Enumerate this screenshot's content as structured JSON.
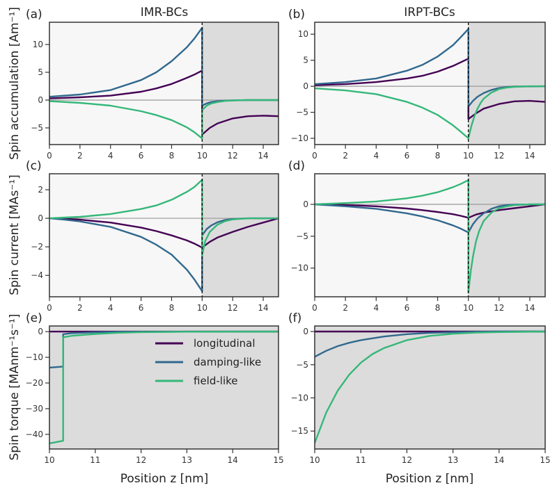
{
  "chart_data": {
    "type": "line",
    "layout": "3x2 grid",
    "columns": [
      "IMR-BCs",
      "IRPT-BCs"
    ],
    "row_ylabels": [
      "Spin accumulation [Am⁻¹]",
      "Spin current [MAs⁻¹]",
      "Spin torque [MAnm⁻¹s⁻¹]"
    ],
    "xlabel": "Position z [nm]",
    "interface_z": 10,
    "colors": {
      "longitudinal": "#440154",
      "damping-like": "#31688e",
      "field-like": "#35b779",
      "nm_region_bg": "#f7f7f7",
      "fm_region_bg": "#dcdcdc",
      "zero_line": "#999999",
      "frame": "#333333"
    },
    "legend": {
      "placement": "upper-right of panel (e)",
      "entries": [
        "longitudinal",
        "damping-like",
        "field-like"
      ]
    },
    "panels": [
      {
        "id": "a",
        "label": "(a)",
        "title": "IMR-BCs",
        "xlim": [
          0,
          15
        ],
        "ylim": [
          -8,
          14
        ],
        "xticks": [
          0,
          2,
          4,
          6,
          8,
          10,
          12,
          14
        ],
        "yticks": [
          -5,
          0,
          5,
          10
        ],
        "ytick_labels": [
          "−5",
          "0",
          "5",
          "10"
        ],
        "shade_from": 10,
        "interface_line": true,
        "series": [
          {
            "name": "longitudinal",
            "x": [
              0,
              2,
              4,
              6,
              7,
              8,
              9,
              9.5,
              10,
              10,
              10.5,
              11,
              12,
              13,
              14,
              15
            ],
            "y": [
              0.3,
              0.5,
              0.8,
              1.5,
              2.1,
              2.9,
              4.0,
              4.6,
              5.3,
              -6.2,
              -5.0,
              -4.2,
              -3.3,
              -2.9,
              -2.8,
              -2.9
            ]
          },
          {
            "name": "damping-like",
            "x": [
              0,
              2,
              4,
              6,
              7,
              8,
              9,
              9.5,
              10,
              10,
              10.3,
              10.6,
              11,
              11.5,
              12,
              13,
              15
            ],
            "y": [
              0.6,
              1.0,
              1.8,
              3.6,
              5.0,
              7.0,
              9.5,
              11.1,
              13.0,
              -1.0,
              -0.6,
              -0.35,
              -0.2,
              -0.1,
              -0.05,
              0,
              0
            ]
          },
          {
            "name": "field-like",
            "x": [
              0,
              2,
              4,
              6,
              7,
              8,
              9,
              9.5,
              10,
              10,
              10.3,
              10.6,
              11,
              11.5,
              12,
              13,
              15
            ],
            "y": [
              -0.2,
              -0.5,
              -1.0,
              -2.0,
              -2.7,
              -3.6,
              -4.9,
              -5.8,
              -6.9,
              -1.8,
              -1.0,
              -0.6,
              -0.35,
              -0.15,
              -0.08,
              0,
              0
            ]
          }
        ]
      },
      {
        "id": "b",
        "label": "(b)",
        "title": "IRPT-BCs",
        "xlim": [
          0,
          15
        ],
        "ylim": [
          -11.2,
          12.3
        ],
        "xticks": [
          0,
          2,
          4,
          6,
          8,
          10,
          12,
          14
        ],
        "yticks": [
          -10,
          -5,
          0,
          5,
          10
        ],
        "ytick_labels": [
          "−10",
          "−5",
          "0",
          "5",
          "10"
        ],
        "shade_from": 10,
        "interface_line": true,
        "series": [
          {
            "name": "longitudinal",
            "x": [
              0,
              2,
              4,
              6,
              7,
              8,
              9,
              9.5,
              10,
              10,
              10.5,
              11,
              12,
              13,
              14,
              15
            ],
            "y": [
              0.2,
              0.4,
              0.8,
              1.5,
              2.0,
              2.8,
              3.9,
              4.6,
              5.3,
              -6.3,
              -5.2,
              -4.3,
              -3.4,
              -2.9,
              -2.8,
              -3.0
            ]
          },
          {
            "name": "damping-like",
            "x": [
              0,
              2,
              4,
              6,
              7,
              8,
              9,
              9.5,
              10,
              10,
              10.3,
              10.6,
              11,
              11.5,
              12,
              12.5,
              13,
              15
            ],
            "y": [
              0.4,
              0.8,
              1.5,
              3.0,
              4.1,
              5.7,
              7.9,
              9.4,
              11.0,
              -3.9,
              -2.8,
              -2.0,
              -1.3,
              -0.7,
              -0.35,
              -0.15,
              -0.05,
              0
            ]
          },
          {
            "name": "field-like",
            "x": [
              0,
              2,
              4,
              6,
              7,
              8,
              9,
              9.5,
              10,
              10,
              10.2,
              10.4,
              10.6,
              10.8,
              11,
              11.5,
              12,
              12.5,
              13,
              14,
              15
            ],
            "y": [
              -0.4,
              -0.8,
              -1.5,
              -3.0,
              -4.1,
              -5.5,
              -7.5,
              -8.7,
              -10.0,
              -10.0,
              -7.6,
              -5.7,
              -4.3,
              -3.2,
              -2.4,
              -1.2,
              -0.55,
              -0.25,
              -0.1,
              0,
              0
            ]
          }
        ]
      },
      {
        "id": "c",
        "label": "(c)",
        "title": "",
        "xlim": [
          0,
          15
        ],
        "ylim": [
          -5.5,
          3.12
        ],
        "xticks": [
          0,
          2,
          4,
          6,
          8,
          10,
          12,
          14
        ],
        "yticks": [
          -4,
          -2,
          0,
          2
        ],
        "ytick_labels": [
          "−4",
          "−2",
          "0",
          "2"
        ],
        "shade_from": 10,
        "interface_line": true,
        "series": [
          {
            "name": "longitudinal",
            "x": [
              0,
              1,
              2,
              4,
              6,
              7,
              8,
              9,
              9.5,
              10,
              10,
              10.5,
              11,
              12,
              13,
              14,
              15
            ],
            "y": [
              0,
              -0.03,
              -0.1,
              -0.3,
              -0.65,
              -0.9,
              -1.2,
              -1.55,
              -1.78,
              -2.05,
              -2.05,
              -1.65,
              -1.35,
              -0.95,
              -0.6,
              -0.3,
              0
            ]
          },
          {
            "name": "damping-like",
            "x": [
              0,
              1,
              2,
              4,
              6,
              7,
              8,
              9,
              9.5,
              10,
              10,
              10.3,
              10.6,
              11,
              11.5,
              12,
              13,
              15
            ],
            "y": [
              0,
              -0.1,
              -0.22,
              -0.6,
              -1.3,
              -1.85,
              -2.55,
              -3.6,
              -4.3,
              -5.1,
              -1.2,
              -0.75,
              -0.5,
              -0.28,
              -0.12,
              -0.05,
              0,
              0
            ]
          },
          {
            "name": "field-like",
            "x": [
              0,
              1,
              2,
              4,
              6,
              7,
              8,
              9,
              9.5,
              10,
              10,
              10.2,
              10.5,
              11,
              11.5,
              12,
              13,
              15
            ],
            "y": [
              0,
              0.05,
              0.1,
              0.3,
              0.65,
              0.9,
              1.3,
              1.85,
              2.2,
              2.7,
              -2.6,
              -1.6,
              -0.95,
              -0.45,
              -0.2,
              -0.08,
              0,
              0
            ]
          }
        ]
      },
      {
        "id": "d",
        "label": "(d)",
        "title": "",
        "xlim": [
          0,
          15
        ],
        "ylim": [
          -14.5,
          4.8
        ],
        "xticks": [
          0,
          2,
          4,
          6,
          8,
          10,
          12,
          14
        ],
        "yticks": [
          -10,
          -5,
          0
        ],
        "ytick_labels": [
          "−10",
          "−5",
          "0"
        ],
        "shade_from": 10,
        "interface_line": true,
        "series": [
          {
            "name": "longitudinal",
            "x": [
              0,
              2,
              4,
              6,
              7,
              8,
              9,
              9.5,
              10,
              10,
              10.5,
              11,
              12,
              13,
              14,
              15
            ],
            "y": [
              0,
              -0.1,
              -0.3,
              -0.65,
              -0.9,
              -1.2,
              -1.55,
              -1.8,
              -2.1,
              -2.1,
              -1.6,
              -1.3,
              -0.9,
              -0.6,
              -0.3,
              0
            ]
          },
          {
            "name": "damping-like",
            "x": [
              0,
              2,
              4,
              6,
              7,
              8,
              9,
              9.5,
              10,
              10,
              10.3,
              10.6,
              11,
              11.5,
              12,
              12.5,
              13,
              15
            ],
            "y": [
              0,
              -0.3,
              -0.7,
              -1.4,
              -1.9,
              -2.5,
              -3.3,
              -3.8,
              -4.4,
              -4.4,
              -3.1,
              -2.2,
              -1.4,
              -0.7,
              -0.3,
              -0.12,
              -0.05,
              0
            ]
          },
          {
            "name": "field-like",
            "x": [
              0,
              2,
              4,
              6,
              7,
              8,
              9,
              9.5,
              10,
              10,
              10.15,
              10.3,
              10.5,
              10.7,
              11,
              11.5,
              12,
              12.5,
              13,
              14,
              15
            ],
            "y": [
              0,
              0.2,
              0.45,
              0.95,
              1.35,
              1.9,
              2.7,
              3.2,
              3.8,
              -13.8,
              -10.6,
              -8.2,
              -5.8,
              -4.2,
              -2.6,
              -1.3,
              -0.6,
              -0.3,
              -0.12,
              0,
              0
            ]
          }
        ]
      },
      {
        "id": "e",
        "label": "(e)",
        "title": "",
        "xlim": [
          10,
          15
        ],
        "ylim": [
          -45.7,
          2.2
        ],
        "xticks": [
          10,
          11,
          12,
          13,
          14,
          15
        ],
        "yticks": [
          -40,
          -30,
          -20,
          -10,
          0
        ],
        "ytick_labels": [
          "−40",
          "−30",
          "−20",
          "−10",
          "0"
        ],
        "shade_from": 10,
        "interface_line": false,
        "series": [
          {
            "name": "longitudinal",
            "x": [
              10,
              15
            ],
            "y": [
              0,
              0
            ]
          },
          {
            "name": "damping-like",
            "x": [
              10,
              10.3,
              10.3,
              10.5,
              11,
              11.5,
              12,
              13,
              15
            ],
            "y": [
              -14,
              -13.6,
              -1.0,
              -0.6,
              -0.25,
              -0.1,
              -0.04,
              0,
              0
            ]
          },
          {
            "name": "field-like",
            "x": [
              10,
              10.3,
              10.3,
              10.5,
              11,
              11.5,
              12,
              13,
              15
            ],
            "y": [
              -43.5,
              -42.5,
              -2.2,
              -1.6,
              -0.9,
              -0.45,
              -0.2,
              -0.05,
              0
            ]
          }
        ]
      },
      {
        "id": "f",
        "label": "(f)",
        "title": "",
        "xlim": [
          10,
          15
        ],
        "ylim": [
          -17.7,
          0.84
        ],
        "xticks": [
          10,
          11,
          12,
          13,
          14,
          15
        ],
        "yticks": [
          -15,
          -10,
          -5,
          0
        ],
        "ytick_labels": [
          "−15",
          "−10",
          "−5",
          "0"
        ],
        "shade_from": 10,
        "interface_line": false,
        "series": [
          {
            "name": "longitudinal",
            "x": [
              10,
              15
            ],
            "y": [
              0,
              0
            ]
          },
          {
            "name": "damping-like",
            "x": [
              10,
              10.25,
              10.5,
              10.75,
              11,
              11.5,
              12,
              12.5,
              13,
              14,
              15
            ],
            "y": [
              -3.8,
              -2.9,
              -2.2,
              -1.7,
              -1.3,
              -0.75,
              -0.4,
              -0.2,
              -0.1,
              0,
              0
            ]
          },
          {
            "name": "field-like",
            "x": [
              10,
              10.25,
              10.5,
              10.75,
              11,
              11.25,
              11.5,
              12,
              12.5,
              13,
              13.5,
              14,
              15
            ],
            "y": [
              -16.8,
              -12.2,
              -8.9,
              -6.5,
              -4.7,
              -3.4,
              -2.5,
              -1.3,
              -0.65,
              -0.33,
              -0.17,
              -0.08,
              0
            ]
          }
        ]
      }
    ]
  }
}
